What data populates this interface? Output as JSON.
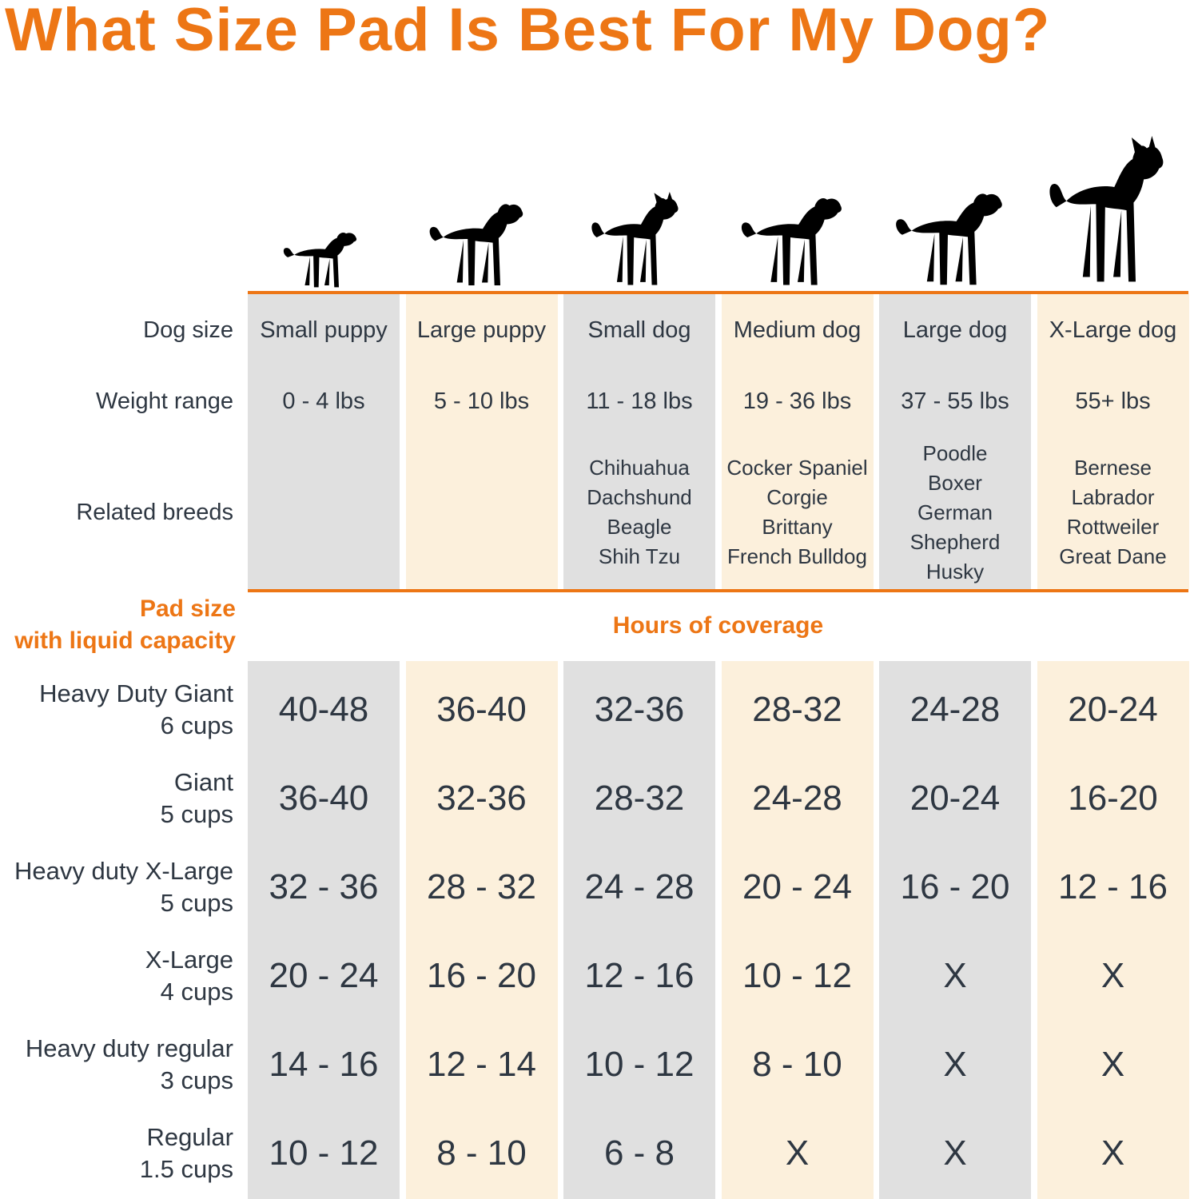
{
  "title": "What Size Pad Is Best For My Dog?",
  "colors": {
    "accent": "#ED7615",
    "column_gray": "#E0E0E0",
    "column_cream": "#FCF0DC",
    "text_dark": "#2E3742"
  },
  "labels": {
    "dog_size": "Dog size",
    "weight_range": "Weight range",
    "related_breeds": "Related breeds",
    "pad_size_line1": "Pad size",
    "pad_size_line2": "with liquid capacity",
    "hours_of_coverage": "Hours of coverage"
  },
  "icons": {
    "dogs": [
      "small-puppy-icon",
      "large-puppy-icon",
      "small-dog-icon",
      "medium-dog-icon",
      "large-dog-icon",
      "x-large-dog-icon"
    ]
  },
  "columns": [
    {
      "label": "Small puppy",
      "weight": "0 - 4 lbs",
      "breed_lines": [],
      "shade": "gray"
    },
    {
      "label": "Large puppy",
      "weight": "5 - 10 lbs",
      "breed_lines": [],
      "shade": "cream"
    },
    {
      "label": "Small dog",
      "weight": "11 - 18 lbs",
      "breed_lines": [
        "Chihuahua",
        "Dachshund",
        "Beagle",
        "Shih Tzu"
      ],
      "shade": "gray"
    },
    {
      "label": "Medium dog",
      "weight": "19 - 36 lbs",
      "breed_lines": [
        "Cocker Spaniel",
        "Corgie",
        "Brittany",
        "French Bulldog"
      ],
      "shade": "cream"
    },
    {
      "label": "Large dog",
      "weight": "37 - 55 lbs",
      "breed_lines": [
        "Poodle",
        "Boxer",
        "German",
        "Shepherd",
        "Husky"
      ],
      "shade": "gray"
    },
    {
      "label": "X-Large dog",
      "weight": "55+ lbs",
      "breed_lines": [
        "Bernese",
        "Labrador",
        "Rottweiler",
        "Great Dane"
      ],
      "shade": "cream"
    }
  ],
  "pad_rows": [
    {
      "name": "Heavy Duty Giant",
      "capacity": "6 cups",
      "hours": [
        "40-48",
        "36-40",
        "32-36",
        "28-32",
        "24-28",
        "20-24"
      ]
    },
    {
      "name": "Giant",
      "capacity": "5 cups",
      "hours": [
        "36-40",
        "32-36",
        "28-32",
        "24-28",
        "20-24",
        "16-20"
      ]
    },
    {
      "name": "Heavy duty X-Large",
      "capacity": "5 cups",
      "hours": [
        "32 - 36",
        "28 - 32",
        "24 - 28",
        "20 - 24",
        "16 - 20",
        "12 - 16"
      ]
    },
    {
      "name": "X-Large",
      "capacity": "4 cups",
      "hours": [
        "20 - 24",
        "16 - 20",
        "12 - 16",
        "10 - 12",
        "X",
        "X"
      ]
    },
    {
      "name": "Heavy duty regular",
      "capacity": "3 cups",
      "hours": [
        "14 - 16",
        "12 - 14",
        "10 - 12",
        "8 - 10",
        "X",
        "X"
      ]
    },
    {
      "name": "Regular",
      "capacity": "1.5 cups",
      "hours": [
        "10 - 12",
        "8 - 10",
        "6 - 8",
        "X",
        "X",
        "X"
      ]
    }
  ],
  "chart_data": {
    "type": "table",
    "title": "What Size Pad Is Best For My Dog?",
    "columns": [
      "Small puppy",
      "Large puppy",
      "Small dog",
      "Medium dog",
      "Large dog",
      "X-Large dog"
    ],
    "rows": [
      {
        "label": "Weight range",
        "values": [
          "0 - 4 lbs",
          "5 - 10 lbs",
          "11 - 18 lbs",
          "19 - 36 lbs",
          "37 - 55 lbs",
          "55+ lbs"
        ]
      },
      {
        "label": "Related breeds",
        "values": [
          "",
          "",
          "Chihuahua Dachshund Beagle Shih Tzu",
          "Cocker Spaniel Corgie Brittany French Bulldog",
          "Poodle Boxer German Shepherd Husky",
          "Bernese Labrador Rottweiler Great Dane"
        ]
      },
      {
        "label": "Heavy Duty Giant 6 cups (hours of coverage)",
        "values": [
          "40-48",
          "36-40",
          "32-36",
          "28-32",
          "24-28",
          "20-24"
        ]
      },
      {
        "label": "Giant 5 cups (hours of coverage)",
        "values": [
          "36-40",
          "32-36",
          "28-32",
          "24-28",
          "20-24",
          "16-20"
        ]
      },
      {
        "label": "Heavy duty X-Large 5 cups (hours of coverage)",
        "values": [
          "32 - 36",
          "28 - 32",
          "24 - 28",
          "20 - 24",
          "16 - 20",
          "12 - 16"
        ]
      },
      {
        "label": "X-Large 4 cups (hours of coverage)",
        "values": [
          "20 - 24",
          "16 - 20",
          "12 - 16",
          "10 - 12",
          "X",
          "X"
        ]
      },
      {
        "label": "Heavy duty regular 3 cups (hours of coverage)",
        "values": [
          "14 - 16",
          "12 - 14",
          "10 - 12",
          "8 - 10",
          "X",
          "X"
        ]
      },
      {
        "label": "Regular 1.5 cups (hours of coverage)",
        "values": [
          "10 - 12",
          "8 - 10",
          "6 - 8",
          "X",
          "X",
          "X"
        ]
      }
    ]
  }
}
